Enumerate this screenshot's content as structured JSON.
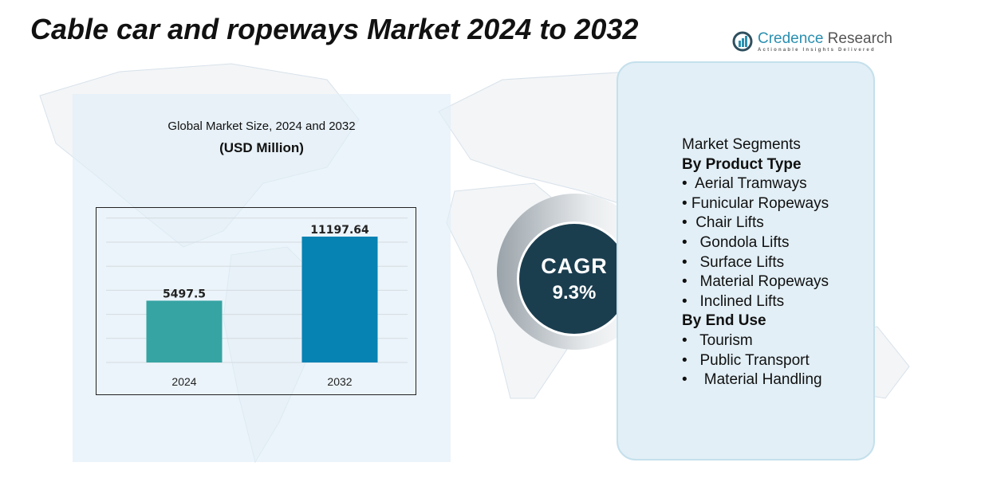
{
  "title": "Cable car and ropeways Market 2024 to 2032",
  "logo": {
    "name_a": "Credence",
    "name_b": " Research",
    "tagline": "Actionable Insights Delivered"
  },
  "chart_data": {
    "type": "bar",
    "title": "Global Market Size, 2024 and 2032",
    "subtitle": "(USD Million)",
    "categories": [
      "2024",
      "2032"
    ],
    "values": [
      5497.5,
      11197.64
    ],
    "value_labels": [
      "5497.5",
      "11197.64"
    ],
    "colors": [
      "#35a4a2",
      "#0682b3"
    ],
    "grid": true
  },
  "cagr": {
    "label": "CAGR",
    "value": "9.3%"
  },
  "segments": {
    "heading": "Market Segments",
    "groups": [
      {
        "title": "By Product Type",
        "items": [
          "•  Aerial Tramways",
          "• Funicular Ropeways",
          "•  Chair Lifts",
          "•   Gondola Lifts",
          "•   Surface Lifts",
          "•   Material Ropeways",
          "•   Inclined Lifts"
        ]
      },
      {
        "title": "By End Use",
        "items": [
          "•   Tourism",
          "•   Public Transport",
          "•    Material Handling"
        ]
      }
    ]
  }
}
